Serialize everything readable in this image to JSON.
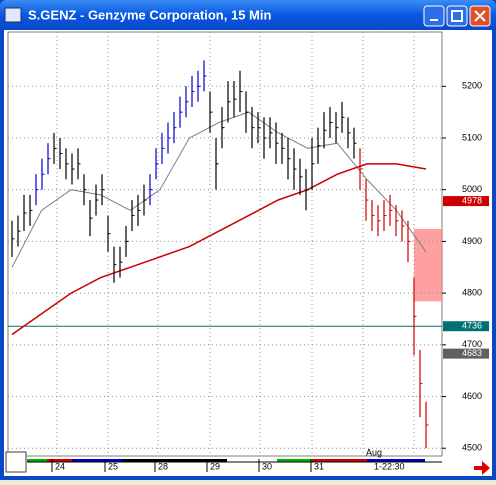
{
  "window": {
    "title": "S.GENZ - Genzyme Corporation, 15 Min"
  },
  "chart": {
    "ylim": [
      4485,
      5305
    ],
    "yticks": [
      5200,
      5100,
      5000,
      4900,
      4800,
      4700,
      4600,
      4500
    ],
    "bar_groups": [
      {
        "color": "#000000",
        "bars": [
          [
            4870,
            4940
          ],
          [
            4890,
            4950
          ],
          [
            4920,
            4990
          ],
          [
            4930,
            4990
          ]
        ]
      },
      {
        "color": "#0000cc",
        "bars": [
          [
            4970,
            5030
          ],
          [
            5000,
            5060
          ],
          [
            5030,
            5090
          ]
        ]
      },
      {
        "color": "#000000",
        "bars": [
          [
            5050,
            5110
          ],
          [
            5040,
            5100
          ],
          [
            5020,
            5080
          ],
          [
            5010,
            5070
          ],
          [
            5020,
            5080
          ],
          [
            4970,
            5030
          ],
          [
            4910,
            4980
          ],
          [
            4950,
            5010
          ],
          [
            4970,
            5030
          ],
          [
            4880,
            4950
          ],
          [
            4820,
            4890
          ],
          [
            4830,
            4890
          ],
          [
            4870,
            4930
          ],
          [
            4920,
            4980
          ],
          [
            4930,
            4990
          ],
          [
            4950,
            5010
          ]
        ]
      },
      {
        "color": "#0000cc",
        "bars": [
          [
            4970,
            5030
          ],
          [
            5020,
            5080
          ],
          [
            5050,
            5110
          ],
          [
            5070,
            5130
          ],
          [
            5090,
            5150
          ],
          [
            5120,
            5180
          ],
          [
            5140,
            5200
          ],
          [
            5160,
            5220
          ],
          [
            5170,
            5230
          ],
          [
            5190,
            5250
          ]
        ]
      },
      {
        "color": "#000000",
        "bars": [
          [
            5110,
            5190
          ],
          [
            5000,
            5100
          ],
          [
            5080,
            5160
          ],
          [
            5130,
            5210
          ],
          [
            5140,
            5210
          ],
          [
            5150,
            5230
          ],
          [
            5110,
            5190
          ],
          [
            5080,
            5160
          ],
          [
            5090,
            5150
          ],
          [
            5060,
            5140
          ],
          [
            5080,
            5140
          ],
          [
            5050,
            5130
          ],
          [
            5050,
            5110
          ],
          [
            5020,
            5100
          ],
          [
            5000,
            5080
          ],
          [
            4990,
            5060
          ],
          [
            4960,
            5040
          ],
          [
            5000,
            5100
          ],
          [
            5050,
            5120
          ],
          [
            5080,
            5150
          ],
          [
            5100,
            5160
          ],
          [
            5090,
            5150
          ],
          [
            5110,
            5170
          ],
          [
            5080,
            5140
          ],
          [
            5060,
            5120
          ]
        ]
      },
      {
        "color": "#cc0000",
        "bars": [
          [
            5000,
            5080
          ],
          [
            4940,
            5020
          ],
          [
            4920,
            4980
          ],
          [
            4910,
            4970
          ],
          [
            4920,
            4980
          ],
          [
            4930,
            4990
          ],
          [
            4910,
            4970
          ],
          [
            4900,
            4960
          ],
          [
            4860,
            4940
          ],
          [
            4680,
            4830
          ],
          [
            4560,
            4690
          ],
          [
            4500,
            4590
          ]
        ]
      }
    ],
    "ma_fast": {
      "color": "#808080",
      "values": [
        4850,
        4960,
        5000,
        4990,
        4960,
        5000,
        5100,
        5130,
        5150,
        5110,
        5080,
        5090,
        5020,
        4960,
        4880
      ]
    },
    "ma_slow": {
      "color": "#cc0000",
      "values": [
        4720,
        4760,
        4800,
        4830,
        4850,
        4870,
        4890,
        4920,
        4950,
        4980,
        5000,
        5030,
        5050,
        5050,
        5040
      ]
    },
    "zone": {
      "color": "#ff8080",
      "range": [
        4784,
        4924
      ]
    },
    "level_line": {
      "color": "#007070",
      "value": 4736
    },
    "price_boxes": [
      {
        "value": 4978,
        "label": "4978",
        "color": "#cc0000"
      },
      {
        "value": 4736,
        "label": "4736",
        "color": "#007070"
      },
      {
        "value": 4683,
        "label": "4683",
        "color": "#606060"
      }
    ],
    "x_labels": [
      "24",
      "25",
      "28",
      "29",
      "30",
      "31"
    ],
    "month_label": "Aug",
    "time_label": "1-22:30"
  }
}
